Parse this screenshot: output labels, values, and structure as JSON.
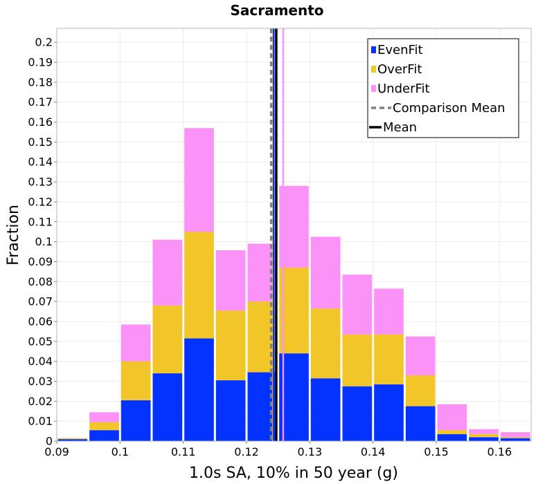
{
  "chart_data": {
    "type": "bar",
    "stacked": true,
    "title": "Sacramento",
    "xlabel": "1.0s SA, 10% in 50 year (g)",
    "ylabel": "Fraction",
    "xlim": [
      0.09,
      0.165
    ],
    "ylim": [
      0,
      0.207
    ],
    "x_ticks": [
      "0.09",
      "0.1",
      "0.11",
      "0.12",
      "0.13",
      "0.14",
      "0.15",
      "0.16"
    ],
    "y_ticks": [
      "0",
      "0.01",
      "0.02",
      "0.03",
      "0.04",
      "0.05",
      "0.06",
      "0.07",
      "0.08",
      "0.09",
      "0.1",
      "0.11",
      "0.12",
      "0.13",
      "0.14",
      "0.15",
      "0.16",
      "0.17",
      "0.18",
      "0.19",
      "0.2"
    ],
    "bin_width": 0.005,
    "bin_centers": [
      0.0925,
      0.0975,
      0.1025,
      0.1075,
      0.1125,
      0.1175,
      0.1225,
      0.1275,
      0.1325,
      0.1375,
      0.1425,
      0.1475,
      0.1525,
      0.1575,
      0.1625
    ],
    "series": [
      {
        "name": "EvenFit",
        "color": "#0433ff",
        "values": [
          0.001,
          0.0055,
          0.0205,
          0.034,
          0.0515,
          0.0305,
          0.0345,
          0.044,
          0.0315,
          0.0275,
          0.0285,
          0.0175,
          0.0035,
          0.002,
          0.0015
        ]
      },
      {
        "name": "OverFit",
        "color": "#f2c628",
        "values": [
          0.0005,
          0.004,
          0.0195,
          0.034,
          0.0535,
          0.035,
          0.0355,
          0.043,
          0.035,
          0.026,
          0.025,
          0.0155,
          0.002,
          0.0015,
          0.0005
        ]
      },
      {
        "name": "UnderFit",
        "color": "#fb92f8",
        "values": [
          0.0,
          0.005,
          0.0185,
          0.033,
          0.052,
          0.0302,
          0.029,
          0.041,
          0.036,
          0.03,
          0.023,
          0.0195,
          0.013,
          0.0025,
          0.0025
        ]
      }
    ],
    "reference_lines": [
      {
        "name": "Comparison Mean",
        "x": 0.1239,
        "color": "#808080",
        "style": "dashed"
      },
      {
        "name": "Mean",
        "x": 0.1247,
        "color": "#000000",
        "style": "solid"
      }
    ],
    "extra_vertical_lines": [
      {
        "x": 0.1242,
        "color": "#f2c628"
      },
      {
        "x": 0.1243,
        "color": "#0433ff"
      },
      {
        "x": 0.1258,
        "color": "#fb92f8"
      }
    ],
    "legend": {
      "position": "top-right",
      "entries": [
        {
          "label": "EvenFit",
          "color": "#0433ff",
          "kind": "square"
        },
        {
          "label": "OverFit",
          "color": "#f2c628",
          "kind": "square"
        },
        {
          "label": "UnderFit",
          "color": "#fb92f8",
          "kind": "square"
        },
        {
          "label": "Comparison Mean",
          "color": "#808080",
          "kind": "dashed-line"
        },
        {
          "label": "Mean",
          "color": "#000000",
          "kind": "line"
        }
      ]
    },
    "grid": true
  }
}
